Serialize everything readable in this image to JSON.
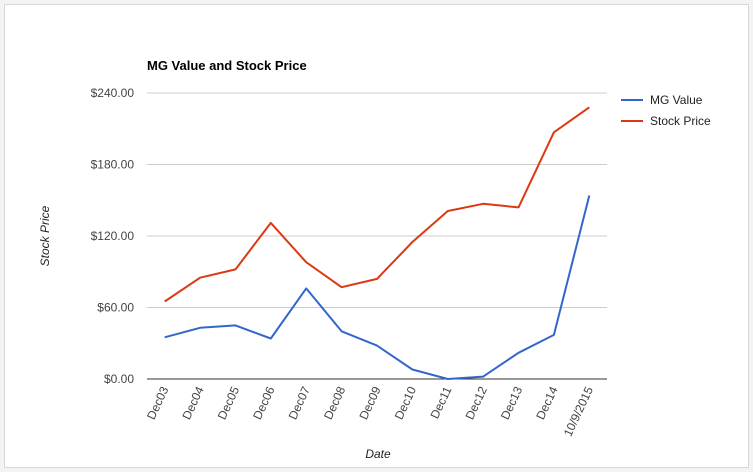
{
  "chart_data": {
    "type": "line",
    "title": "MG Value and Stock Price",
    "xlabel": "Date",
    "ylabel": "Stock Price",
    "categories": [
      "Dec03",
      "Dec04",
      "Dec05",
      "Dec06",
      "Dec07",
      "Dec08",
      "Dec09",
      "Dec10",
      "Dec11",
      "Dec12",
      "Dec13",
      "Dec14",
      "10/9/2015"
    ],
    "y_ticks": [
      "$0.00",
      "$60.00",
      "$120.00",
      "$180.00",
      "$240.00"
    ],
    "ylim": [
      0,
      240
    ],
    "grid": true,
    "legend_position": "right",
    "series": [
      {
        "name": "MG Value",
        "color": "#3366cc",
        "values": [
          35,
          43,
          45,
          34,
          76,
          40,
          28,
          8,
          0,
          2,
          22,
          37,
          154
        ]
      },
      {
        "name": "Stock Price",
        "color": "#dc3912",
        "values": [
          65,
          85,
          92,
          131,
          98,
          77,
          84,
          115,
          141,
          147,
          144,
          207,
          228
        ]
      }
    ]
  }
}
